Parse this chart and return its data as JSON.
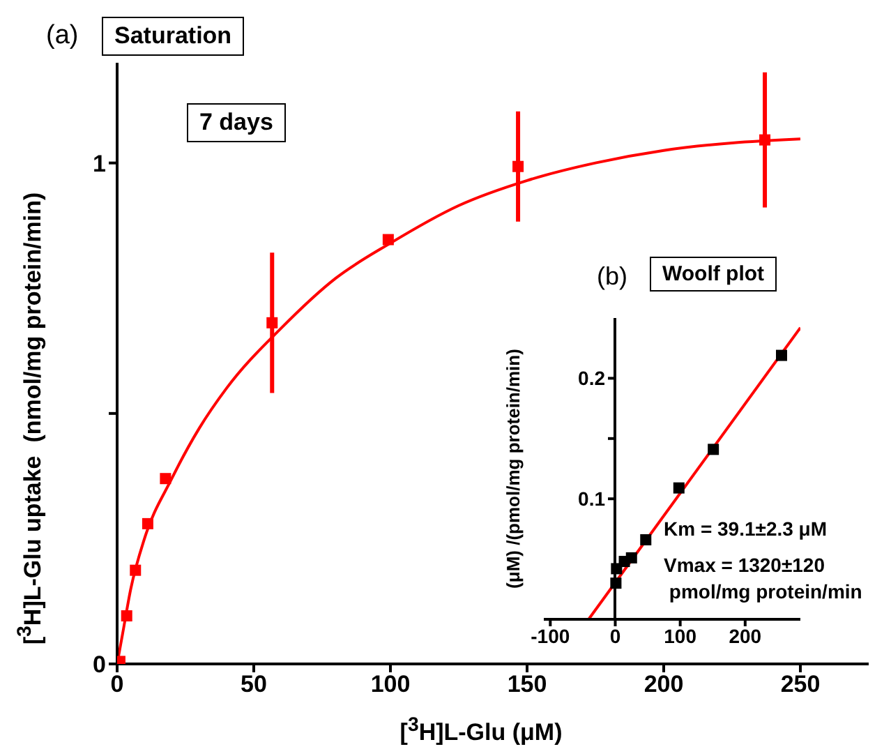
{
  "chart_data": [
    {
      "type": "scatter",
      "title": "Saturation",
      "xlabel": "[$^{3}$H]L-Glu (μM)",
      "ylabel": "[$^{3}$H]L-Glu uptake  (nmol/mg protein/min)",
      "annotations": [
        "(a)",
        "7 days"
      ],
      "xlim": [
        0,
        275
      ],
      "ylim": [
        0,
        1.2
      ],
      "xticks": [
        0,
        50,
        100,
        150,
        200,
        250
      ],
      "yticks": [
        0,
        {
          "value": 0.5,
          "label": null
        },
        1
      ],
      "series": [
        {
          "type": "scatter",
          "color": "#ff0000",
          "marker": "square",
          "x": [
            1,
            3.5,
            6.7,
            11.2,
            17.7,
            56.7,
            99.2,
            146.7,
            237
          ],
          "values": [
            0.005,
            0.096,
            0.187,
            0.28,
            0.37,
            0.681,
            0.847,
            0.993,
            1.046
          ],
          "errors": [
            null,
            null,
            null,
            null,
            null,
            0.14,
            null,
            0.11,
            0.135
          ]
        },
        {
          "type": "line",
          "color": "#ff0000",
          "marker": "none",
          "x": [
            0,
            2,
            5,
            10,
            20,
            30,
            40,
            60,
            80,
            100,
            125,
            150,
            175,
            200,
            225,
            250
          ],
          "values": [
            0,
            0.06,
            0.15,
            0.25,
            0.37,
            0.47,
            0.55,
            0.67,
            0.77,
            0.84,
            0.915,
            0.965,
            1.0,
            1.025,
            1.04,
            1.048
          ]
        }
      ]
    },
    {
      "type": "scatter",
      "title": "Woolf plot",
      "ylabel": "(μM) /(pmol/mg protein/min)",
      "annotations": [
        "(b)",
        "Km = 39.1±2.3 μM",
        "Vmax = 1320±120\n pmol/mg protein/min"
      ],
      "xlim": [
        -110,
        285
      ],
      "ylim": [
        0,
        0.25
      ],
      "xticks": [
        -100,
        0,
        100,
        200
      ],
      "yticks": [
        0.1,
        {
          "value": 0.15,
          "label": null
        },
        0.2
      ],
      "series": [
        {
          "type": "scatter",
          "color": "#000000",
          "marker": "square",
          "x": [
            1,
            2,
            14,
            25,
            47,
            98,
            151,
            256
          ],
          "values": [
            0.03,
            0.042,
            0.048,
            0.051,
            0.066,
            0.109,
            0.141,
            0.219
          ]
        },
        {
          "type": "line",
          "color": "#ff0000",
          "marker": "none",
          "x": [
            -41,
            285
          ],
          "values": [
            0,
            0.242
          ]
        }
      ]
    }
  ]
}
